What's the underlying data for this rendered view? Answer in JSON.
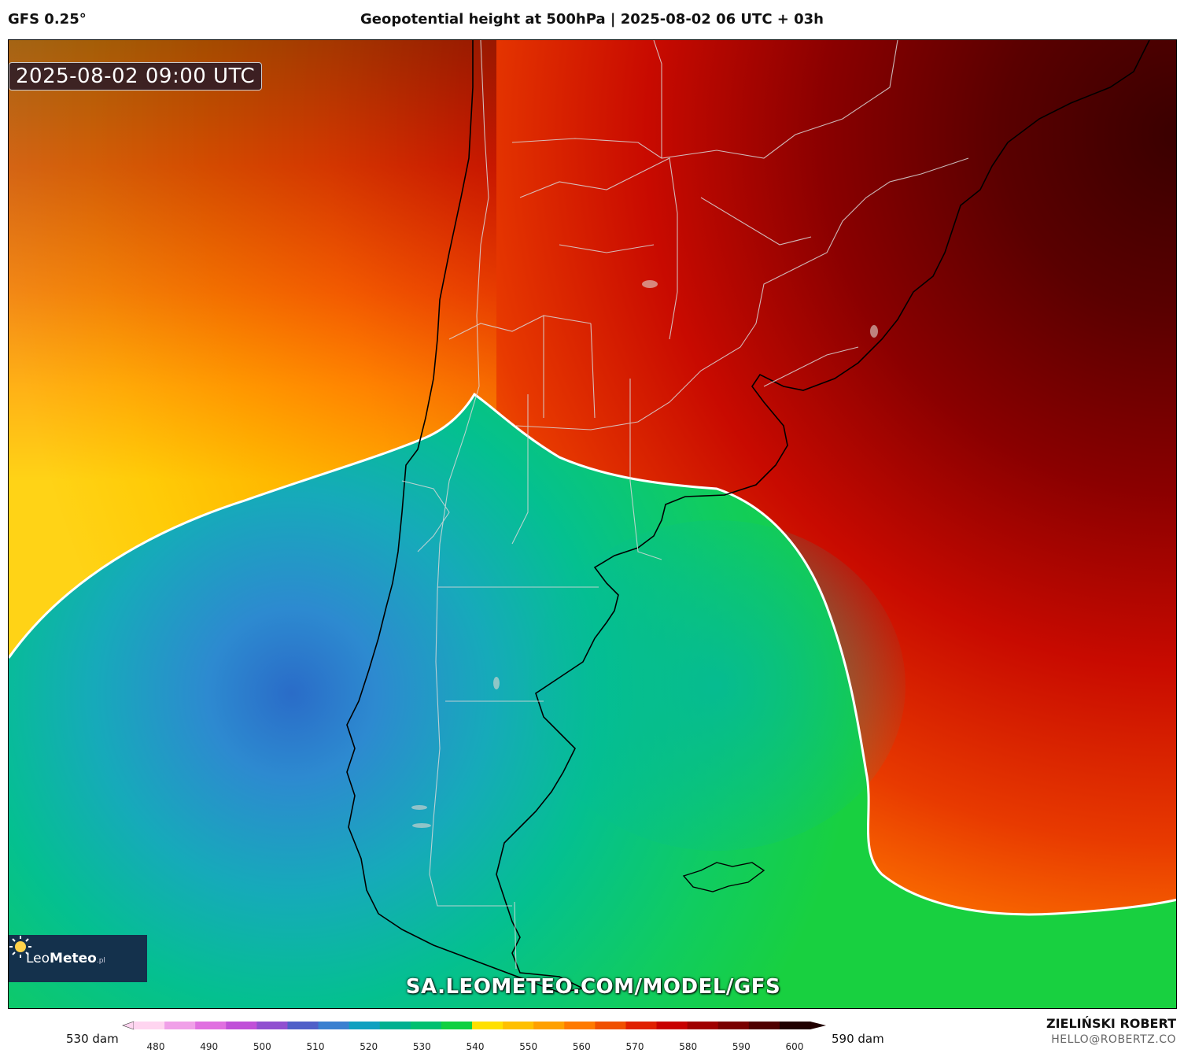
{
  "header": {
    "model": "GFS 0.25°",
    "title": "Geopotential height at 500hPa | 2025-08-02 06 UTC + 03h"
  },
  "map": {
    "timestamp": "2025-08-02 09:00 UTC",
    "watermark_url": "SA.LEOMETEO.COM/MODEL/GFS",
    "logo": {
      "name_light": "Leo",
      "name_bold": "Meteo",
      "suffix": ".pl"
    },
    "region": "South America",
    "colors": {
      "contour_552": "#ffffff",
      "low_center": "#2a78c8",
      "high": "#5a0000"
    }
  },
  "colorbar": {
    "unit_min_label": "530 dam",
    "unit_max_label": "590 dam",
    "ticks": [
      "480",
      "490",
      "500",
      "510",
      "520",
      "530",
      "540",
      "550",
      "560",
      "570",
      "580",
      "590",
      "600"
    ],
    "colors": [
      "#ffd5f0",
      "#f0a0e8",
      "#e070e0",
      "#c050d8",
      "#9050d0",
      "#5060c8",
      "#3a80d0",
      "#10a0c0",
      "#00b090",
      "#00c070",
      "#10d040",
      "#ffe000",
      "#ffc000",
      "#ffa000",
      "#ff7a00",
      "#f05000",
      "#e02000",
      "#c80000",
      "#a00000",
      "#7a0000",
      "#500000",
      "#200000"
    ]
  },
  "credits": {
    "author": "ZIELIŃSKI ROBERT",
    "email": "HELLO@ROBERTZ.CO"
  }
}
